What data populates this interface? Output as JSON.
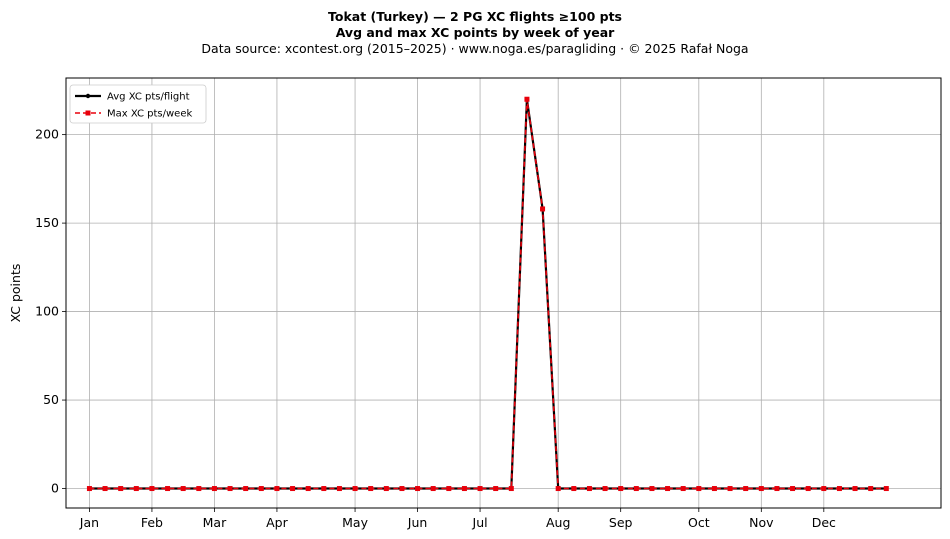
{
  "chart_data": {
    "type": "line",
    "title": "Tokat (Turkey)  —  2 PG XC flights ≥100 pts",
    "subtitle": "Avg and max XC points by week of year",
    "source_line": "Data source: xcontest.org (2015–2025)  ·  www.noga.es/paragliding  ·  © 2025 Rafał Noga",
    "xlabel": "",
    "ylabel": "XC points",
    "x_tick_labels": [
      "Jan",
      "Feb",
      "Mar",
      "Apr",
      "May",
      "Jun",
      "Jul",
      "Aug",
      "Sep",
      "Oct",
      "Nov",
      "Dec"
    ],
    "x_tick_weeks": [
      1,
      5,
      9,
      13,
      18,
      22,
      26,
      31,
      35,
      40,
      44,
      48
    ],
    "y_ticks": [
      0,
      50,
      100,
      150,
      200
    ],
    "xlim": [
      -0.5,
      55.5
    ],
    "ylim": [
      -11,
      232
    ],
    "grid": true,
    "legend_position": "top-left",
    "weeks": [
      1,
      2,
      3,
      4,
      5,
      6,
      7,
      8,
      9,
      10,
      11,
      12,
      13,
      14,
      15,
      16,
      17,
      18,
      19,
      20,
      21,
      22,
      23,
      24,
      25,
      26,
      27,
      28,
      29,
      30,
      31,
      32,
      33,
      34,
      35,
      36,
      37,
      38,
      39,
      40,
      41,
      42,
      43,
      44,
      45,
      46,
      47,
      48,
      49,
      50,
      51,
      52
    ],
    "series": [
      {
        "name": "Avg XC pts/flight",
        "color": "#000000",
        "style": "solid",
        "marker": "circle",
        "values": [
          0,
          0,
          0,
          0,
          0,
          0,
          0,
          0,
          0,
          0,
          0,
          0,
          0,
          0,
          0,
          0,
          0,
          0,
          0,
          0,
          0,
          0,
          0,
          0,
          0,
          0,
          0,
          0,
          220,
          158,
          0,
          0,
          0,
          0,
          0,
          0,
          0,
          0,
          0,
          0,
          0,
          0,
          0,
          0,
          0,
          0,
          0,
          0,
          0,
          0,
          0,
          0
        ]
      },
      {
        "name": "Max XC pts/week",
        "color": "#e8000b",
        "style": "dashed",
        "marker": "square",
        "values": [
          0,
          0,
          0,
          0,
          0,
          0,
          0,
          0,
          0,
          0,
          0,
          0,
          0,
          0,
          0,
          0,
          0,
          0,
          0,
          0,
          0,
          0,
          0,
          0,
          0,
          0,
          0,
          0,
          220,
          158,
          0,
          0,
          0,
          0,
          0,
          0,
          0,
          0,
          0,
          0,
          0,
          0,
          0,
          0,
          0,
          0,
          0,
          0,
          0,
          0,
          0,
          0
        ]
      }
    ]
  }
}
